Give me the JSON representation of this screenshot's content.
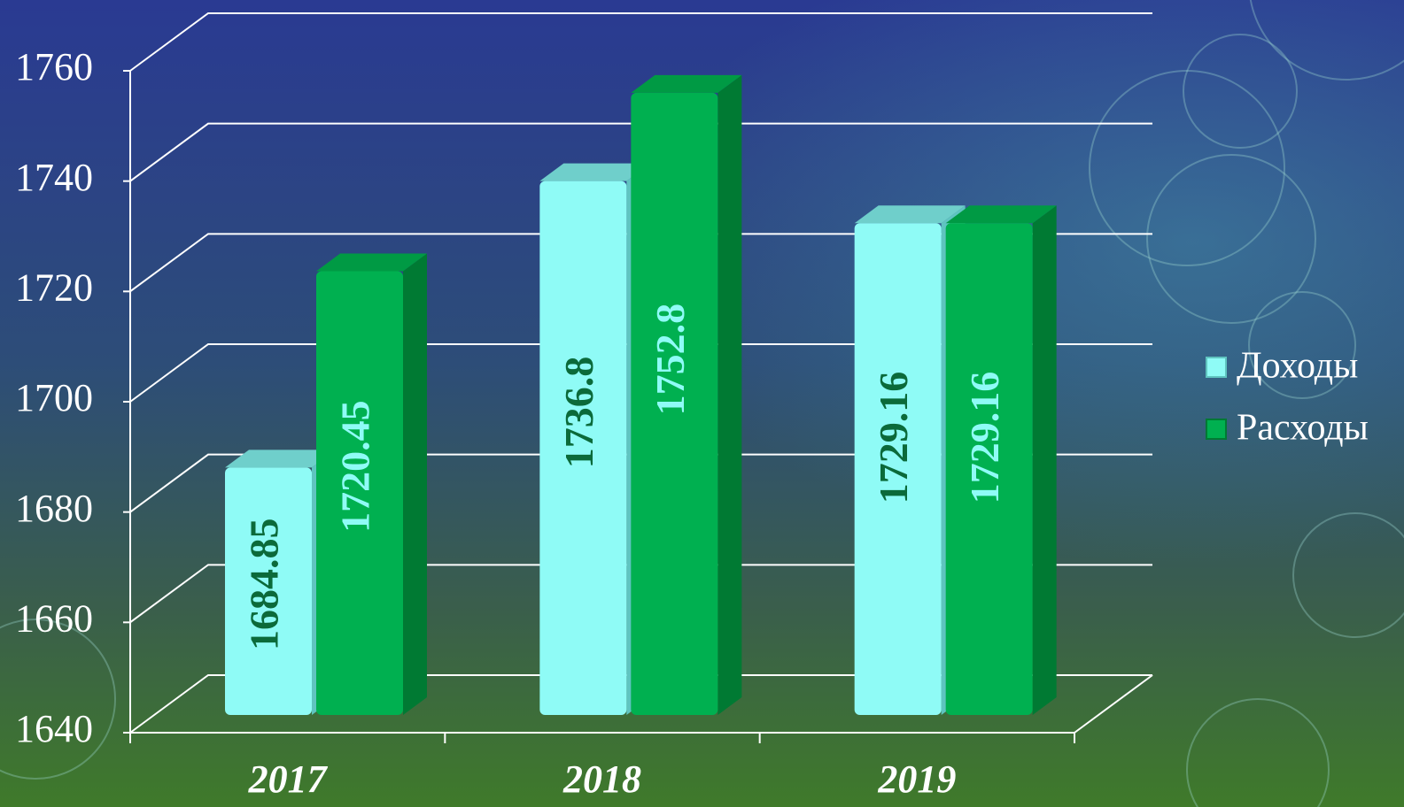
{
  "chart_data": {
    "type": "bar",
    "categories": [
      "2017",
      "2018",
      "2019"
    ],
    "series": [
      {
        "name": "Доходы",
        "color": "#8ffbf6",
        "values": [
          1684.85,
          1736.8,
          1729.16
        ]
      },
      {
        "name": "Расходы",
        "color": "#00b050",
        "values": [
          1720.45,
          1752.8,
          1729.16
        ]
      }
    ],
    "ylim": [
      1640,
      1760
    ],
    "yticks": [
      1640,
      1660,
      1680,
      1700,
      1720,
      1740,
      1760
    ],
    "grid": true,
    "legend": "right"
  }
}
